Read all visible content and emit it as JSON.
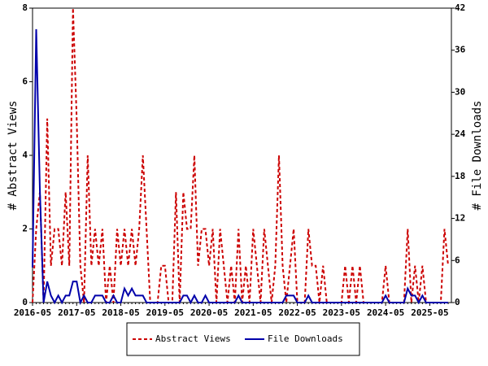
{
  "chart_data": {
    "type": "line",
    "y_label": "# Abstract Views",
    "y2_label": "# File Downloads",
    "categories": [
      "2016-05",
      null,
      null,
      null,
      null,
      null,
      null,
      null,
      null,
      null,
      null,
      null,
      "2017-05",
      null,
      null,
      null,
      null,
      null,
      null,
      null,
      null,
      null,
      null,
      null,
      "2018-05",
      null,
      null,
      null,
      null,
      null,
      null,
      null,
      null,
      null,
      null,
      null,
      "2019-05",
      null,
      null,
      null,
      null,
      null,
      null,
      null,
      null,
      null,
      null,
      null,
      "2020-05",
      null,
      null,
      null,
      null,
      null,
      null,
      null,
      null,
      null,
      null,
      null,
      "2021-05",
      null,
      null,
      null,
      null,
      null,
      null,
      null,
      null,
      null,
      null,
      null,
      "2022-05",
      null,
      null,
      null,
      null,
      null,
      null,
      null,
      null,
      null,
      null,
      null,
      "2023-05",
      null,
      null,
      null,
      null,
      null,
      null,
      null,
      null,
      null,
      null,
      null,
      "2024-05",
      null,
      null,
      null,
      null,
      null,
      null,
      null,
      null,
      null,
      null,
      null,
      "2025-05",
      null,
      null,
      null,
      null,
      null
    ],
    "series": [
      {
        "name": "Abstract Views",
        "color": "#cc0000",
        "dash": true,
        "axis": "y",
        "values": [
          0,
          2,
          3,
          0,
          5,
          1,
          2,
          2,
          1,
          3,
          1,
          8,
          5,
          1,
          0,
          4,
          1,
          2,
          1,
          2,
          0,
          1,
          0,
          2,
          1,
          2,
          1,
          2,
          1,
          2,
          4,
          2,
          0,
          0,
          0,
          1,
          1,
          0,
          0,
          3,
          0,
          3,
          2,
          2,
          4,
          1,
          2,
          2,
          1,
          2,
          0,
          2,
          1,
          0,
          1,
          0,
          2,
          0,
          1,
          0,
          2,
          1,
          0,
          2,
          1,
          0,
          1,
          4,
          1,
          0,
          1,
          2,
          0,
          0,
          0,
          2,
          1,
          1,
          0,
          1,
          0,
          0,
          0,
          0,
          0,
          1,
          0,
          1,
          0,
          1,
          0,
          0,
          0,
          0,
          0,
          0,
          1,
          0,
          0,
          0,
          0,
          0,
          2,
          0,
          1,
          0,
          1,
          0,
          0,
          0,
          0,
          0,
          2,
          1
        ]
      },
      {
        "name": "File Downloads",
        "color": "#0000aa",
        "dash": false,
        "axis": "y2",
        "values": [
          5,
          39,
          16,
          0,
          3,
          1,
          0,
          1,
          0,
          1,
          1,
          3,
          3,
          0,
          1,
          0,
          0,
          1,
          1,
          1,
          0,
          0,
          1,
          0,
          0,
          2,
          1,
          2,
          1,
          1,
          1,
          0,
          0,
          0,
          0,
          0,
          0,
          0,
          0,
          0,
          0,
          1,
          1,
          0,
          1,
          0,
          0,
          1,
          0,
          0,
          0,
          0,
          0,
          0,
          0,
          0,
          1,
          0,
          0,
          0,
          0,
          0,
          0,
          0,
          0,
          0,
          0,
          0,
          0,
          1,
          1,
          1,
          0,
          0,
          0,
          1,
          0,
          0,
          0,
          0,
          0,
          0,
          0,
          0,
          0,
          0,
          0,
          0,
          0,
          0,
          0,
          0,
          0,
          0,
          0,
          0,
          1,
          0,
          0,
          0,
          0,
          0,
          2,
          1,
          1,
          0,
          1,
          0,
          0,
          0,
          0,
          0,
          0,
          0
        ]
      }
    ],
    "ylim": [
      0,
      8
    ],
    "yticks": [
      0,
      2,
      4,
      6,
      8
    ],
    "y2lim": [
      0,
      42
    ],
    "y2ticks": [
      0,
      6,
      12,
      18,
      24,
      30,
      36,
      42
    ],
    "legend": "bottom"
  }
}
